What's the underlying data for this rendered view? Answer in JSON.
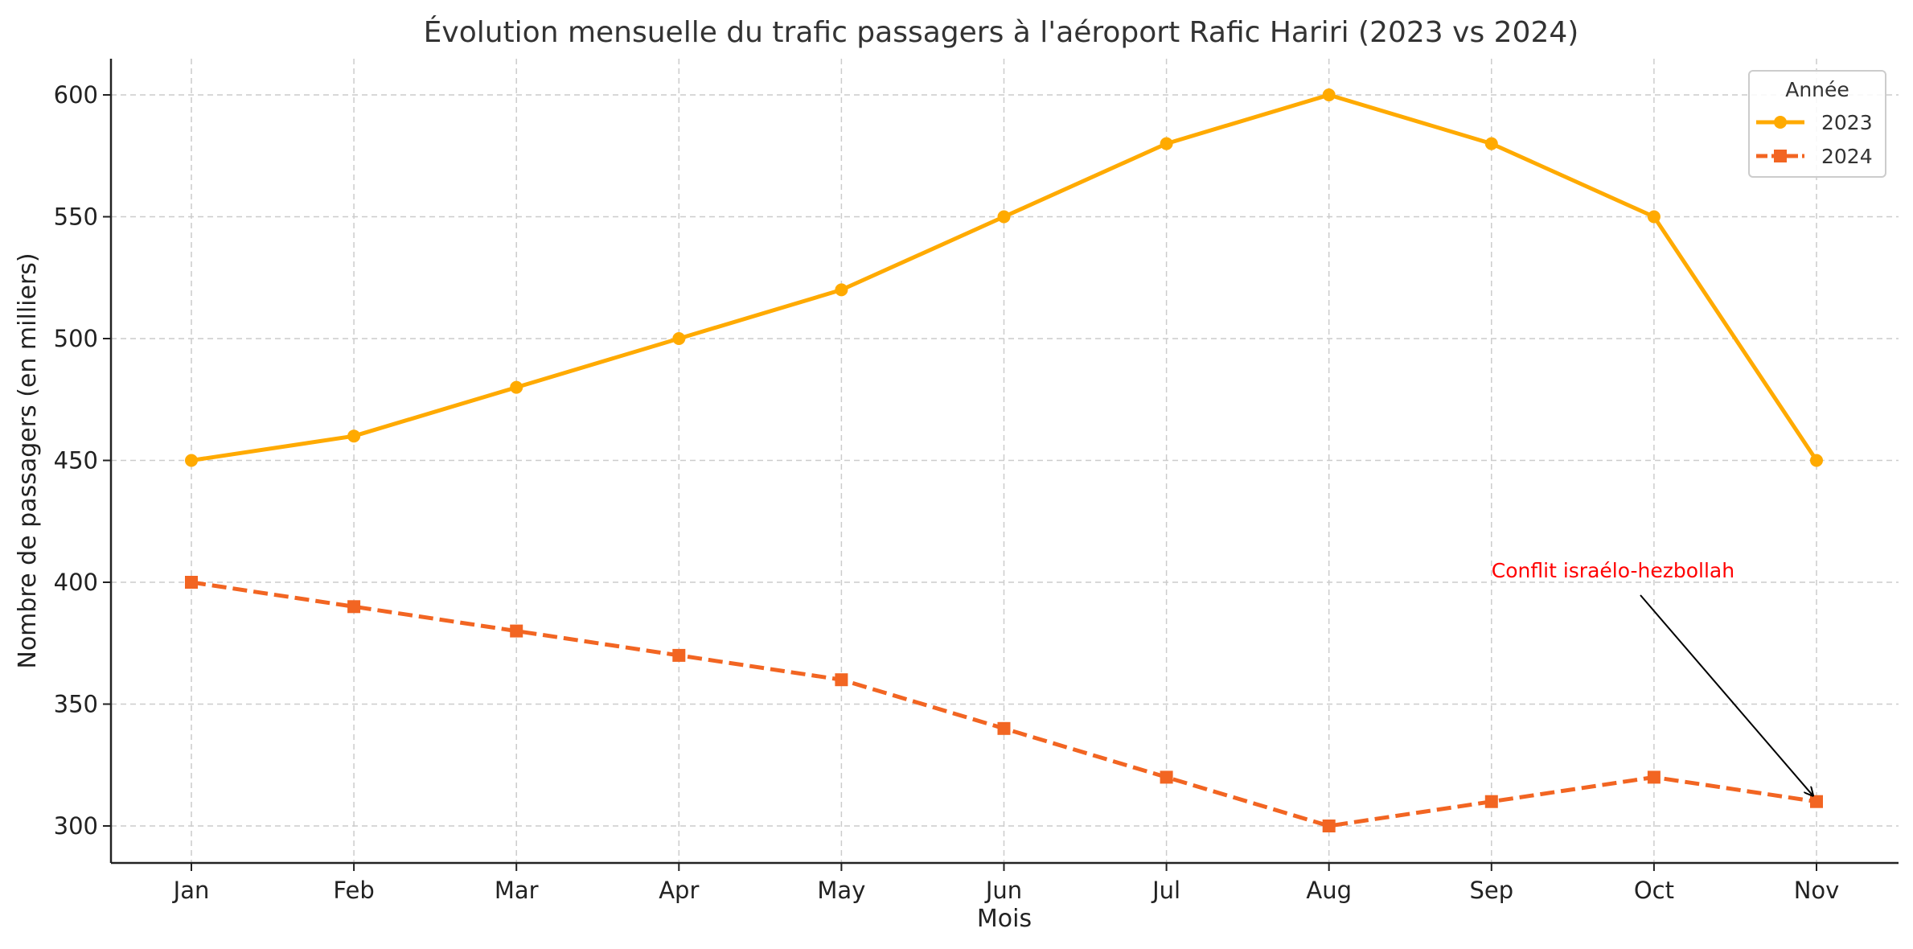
{
  "chart_data": {
    "type": "line",
    "title": "Évolution mensuelle du trafic passagers à l'aéroport Rafic Hariri (2023 vs 2024)",
    "xlabel": "Mois",
    "ylabel": "Nombre de passagers (en milliers)",
    "categories": [
      "Jan",
      "Feb",
      "Mar",
      "Apr",
      "May",
      "Jun",
      "Jul",
      "Aug",
      "Sep",
      "Oct",
      "Nov"
    ],
    "ylim": [
      285,
      615
    ],
    "yticks": [
      300,
      350,
      400,
      450,
      500,
      550,
      600
    ],
    "grid": true,
    "legend": {
      "title": "Année",
      "placement": "top-right"
    },
    "series": [
      {
        "name": "2023",
        "values": [
          450,
          460,
          480,
          500,
          520,
          550,
          580,
          600,
          580,
          550,
          450
        ],
        "color": "#FFAA00",
        "marker": "circle",
        "linestyle": "solid"
      },
      {
        "name": "2024",
        "values": [
          400,
          390,
          380,
          370,
          360,
          340,
          320,
          300,
          310,
          320,
          310
        ],
        "color": "#F26522",
        "marker": "square",
        "linestyle": "dashed"
      }
    ],
    "annotations": [
      {
        "text": "Conflit israélo-hezbollah",
        "target_category": "Nov",
        "target_value": 310,
        "text_anchor_category": "Sep",
        "text_anchor_value": 400,
        "color": "#FF0000"
      }
    ]
  }
}
